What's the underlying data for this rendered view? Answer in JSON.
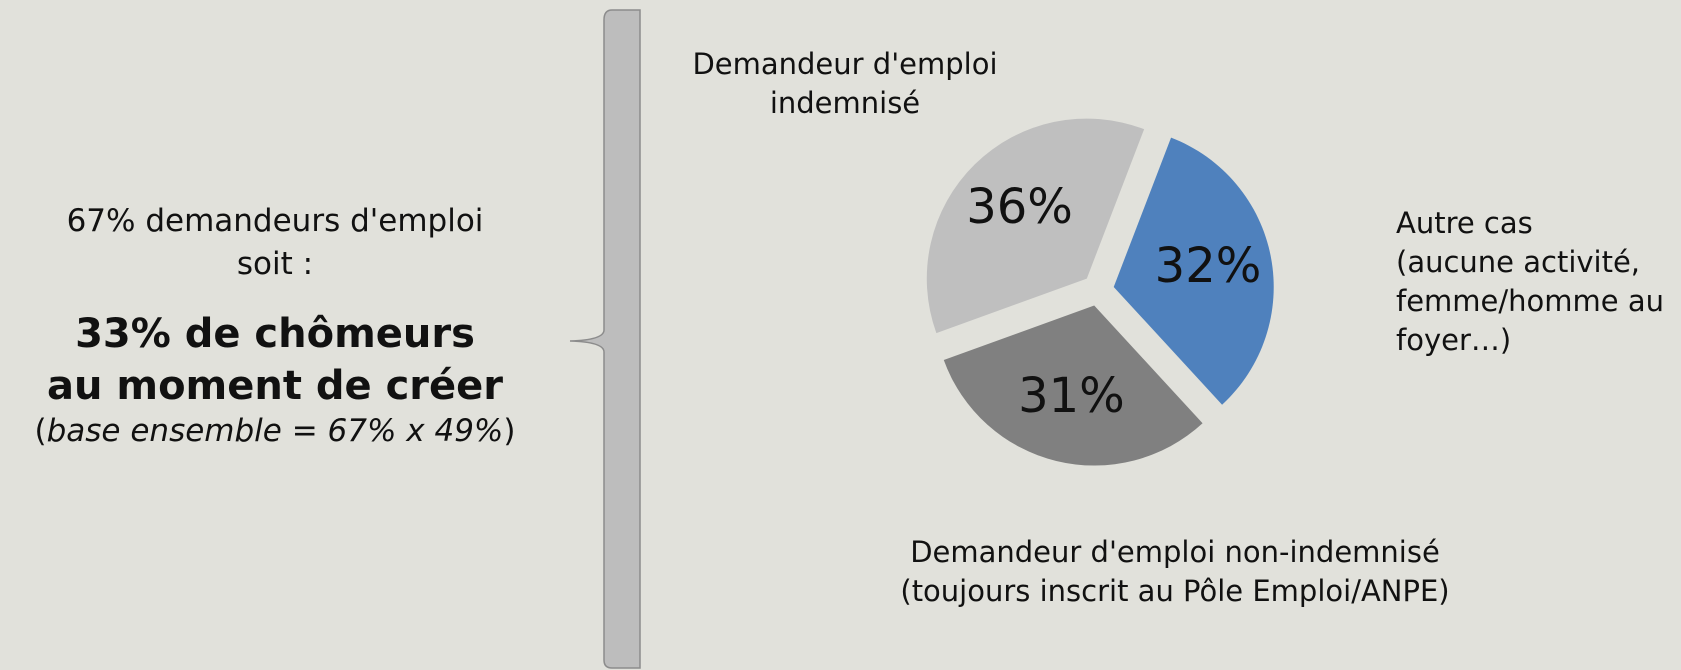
{
  "chart_data": {
    "type": "pie",
    "categories": [
      "Autre cas\n(aucune activité,\nfemme/homme au\nfoyer…)",
      "Demandeur d'emploi non-indemnisé\n(toujours inscrit au Pôle Emploi/ANPE)",
      "Demandeur d'emploi\nindemnisé"
    ],
    "values": [
      32,
      31,
      36
    ],
    "value_labels": [
      "32%",
      "31%",
      "36%"
    ],
    "colors": [
      "#4f81bd",
      "#808080",
      "#bfbfbf"
    ],
    "annotations": [
      "67% demandeurs d'emploi\nsoit :",
      "33% de chômeurs\nau moment de créer",
      "(",
      "base ensemble = 67% x 49%",
      ")"
    ]
  }
}
